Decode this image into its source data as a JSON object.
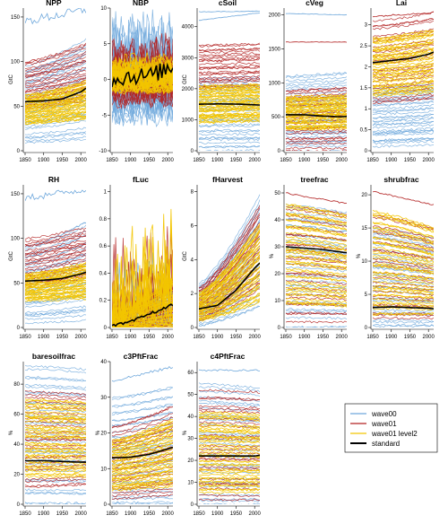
{
  "figure": {
    "background": "#ffffff"
  },
  "colors": {
    "wave00": "#6fa8dc",
    "wave01": "#b22222",
    "wave01_level2": "#f2c500",
    "standard": "#000000"
  },
  "legend": {
    "placement": "bottom-right",
    "items": [
      {
        "key": "wave00",
        "label": "wave00"
      },
      {
        "key": "wave01",
        "label": "wave01"
      },
      {
        "key": "wave01_level2",
        "label": "wave01 level2"
      },
      {
        "key": "standard",
        "label": "standard"
      }
    ]
  },
  "chart_data": [
    {
      "type": "line",
      "title": "NPP",
      "ylabel": "GtC",
      "xlim": [
        1850,
        2014
      ],
      "xticks": [
        1850,
        1900,
        1950,
        2000
      ],
      "ylim": [
        0,
        160
      ],
      "yticks": [
        0,
        50,
        100,
        150
      ],
      "bands": {
        "wave00": [
          [
            8,
            95
          ],
          [
            12,
            125
          ]
        ],
        "wave01": [
          [
            45,
            100
          ],
          [
            55,
            120
          ]
        ],
        "wave01_level2": [
          [
            30,
            62
          ],
          [
            35,
            78
          ]
        ]
      },
      "outliers": [
        {
          "series": "wave00",
          "start": 145,
          "end": 158,
          "noise": 5
        }
      ],
      "standard": [
        [
          1850,
          55
        ],
        [
          1900,
          56
        ],
        [
          1950,
          58
        ],
        [
          2000,
          66
        ],
        [
          2014,
          70
        ]
      ]
    },
    {
      "type": "line",
      "title": "NBP",
      "ylabel": "",
      "xlim": [
        1850,
        2014
      ],
      "xticks": [
        1850,
        1900,
        1950,
        2000
      ],
      "ylim": [
        -10,
        10
      ],
      "yticks": [
        -10,
        -5,
        0,
        5,
        10
      ],
      "bands": {
        "wave00": [
          [
            -5,
            5
          ],
          [
            -5,
            5
          ]
        ],
        "wave01": [
          [
            -3,
            3
          ],
          [
            -3,
            3
          ]
        ],
        "wave01_level2": [
          [
            -1.5,
            2
          ],
          [
            -1.5,
            2
          ]
        ]
      },
      "outliers": [],
      "noisy": true,
      "standard": [
        [
          1850,
          0
        ],
        [
          1900,
          0.5
        ],
        [
          1950,
          0.5
        ],
        [
          2000,
          1.5
        ],
        [
          2014,
          2
        ]
      ]
    },
    {
      "type": "line",
      "title": "cSoil",
      "ylabel": "GtC",
      "xlim": [
        1850,
        2014
      ],
      "xticks": [
        1850,
        1900,
        1950,
        2000
      ],
      "ylim": [
        0,
        4600
      ],
      "yticks": [
        0,
        1000,
        2000,
        3000,
        4000
      ],
      "bands": {
        "wave00": [
          [
            0,
            2400
          ],
          [
            0,
            2450
          ]
        ],
        "wave01": [
          [
            2000,
            3400
          ],
          [
            2050,
            3450
          ]
        ],
        "wave01_level2": [
          [
            900,
            2100
          ],
          [
            950,
            2150
          ]
        ]
      },
      "outliers": [
        {
          "series": "wave00",
          "start": 4200,
          "end": 4450,
          "noise": 10
        },
        {
          "series": "wave00",
          "start": 4480,
          "end": 4500,
          "noise": 10
        }
      ],
      "standard": [
        [
          1850,
          1500
        ],
        [
          1900,
          1510
        ],
        [
          1950,
          1505
        ],
        [
          2000,
          1480
        ],
        [
          2014,
          1475
        ]
      ]
    },
    {
      "type": "line",
      "title": "cVeg",
      "ylabel": "",
      "xlim": [
        1850,
        2014
      ],
      "xticks": [
        1850,
        1900,
        1950,
        2000
      ],
      "ylim": [
        0,
        2100
      ],
      "yticks": [
        0,
        500,
        1000,
        1500,
        2000
      ],
      "bands": {
        "wave00": [
          [
            0,
            1100
          ],
          [
            0,
            1150
          ]
        ],
        "wave01": [
          [
            0,
            900
          ],
          [
            0,
            950
          ]
        ],
        "wave01_level2": [
          [
            300,
            800
          ],
          [
            320,
            820
          ]
        ]
      },
      "outliers": [
        {
          "series": "wave00",
          "start": 2020,
          "end": 2000,
          "noise": 4
        },
        {
          "series": "wave01",
          "start": 1600,
          "end": 1600,
          "noise": 4
        }
      ],
      "standard": [
        [
          1850,
          530
        ],
        [
          1900,
          530
        ],
        [
          1950,
          510
        ],
        [
          2000,
          500
        ],
        [
          2014,
          505
        ]
      ]
    },
    {
      "type": "line",
      "title": "Lai",
      "ylabel": "",
      "xlim": [
        1850,
        2014
      ],
      "xticks": [
        1850,
        1900,
        1950,
        2000
      ],
      "ylim": [
        0,
        3.4
      ],
      "yticks": [
        0,
        0.5,
        1,
        1.5,
        2,
        2.5,
        3
      ],
      "bands": {
        "wave00": [
          [
            0.1,
            1.5
          ],
          [
            0.15,
            1.6
          ]
        ],
        "wave01": [
          [
            1.1,
            3.1
          ],
          [
            1.2,
            3.3
          ]
        ],
        "wave01_level2": [
          [
            1.3,
            2.7
          ],
          [
            1.4,
            2.9
          ]
        ]
      },
      "outliers": [
        {
          "series": "wave01",
          "start": 3.2,
          "end": 3.3,
          "noise": 0.02
        }
      ],
      "standard": [
        [
          1850,
          2.1
        ],
        [
          1900,
          2.15
        ],
        [
          1950,
          2.2
        ],
        [
          2000,
          2.3
        ],
        [
          2014,
          2.35
        ]
      ]
    },
    {
      "type": "line",
      "title": "RH",
      "ylabel": "GtC",
      "xlim": [
        1850,
        2014
      ],
      "xticks": [
        1850,
        1900,
        1950,
        2000
      ],
      "ylim": [
        0,
        160
      ],
      "yticks": [
        0,
        50,
        100,
        150
      ],
      "bands": {
        "wave00": [
          [
            5,
            90
          ],
          [
            8,
            118
          ]
        ],
        "wave01": [
          [
            45,
            100
          ],
          [
            55,
            112
          ]
        ],
        "wave01_level2": [
          [
            30,
            60
          ],
          [
            32,
            72
          ]
        ]
      },
      "outliers": [
        {
          "series": "wave00",
          "start": 145,
          "end": 155,
          "noise": 4
        }
      ],
      "standard": [
        [
          1850,
          52
        ],
        [
          1900,
          53
        ],
        [
          1950,
          55
        ],
        [
          2000,
          60
        ],
        [
          2014,
          62
        ]
      ]
    },
    {
      "type": "line",
      "title": "fLuc",
      "ylabel": "",
      "xlim": [
        1850,
        2014
      ],
      "xticks": [
        1850,
        1900,
        1950,
        2000
      ],
      "ylim": [
        0,
        1.05
      ],
      "yticks": [
        0,
        0.2,
        0.4,
        0.6,
        0.8,
        1
      ],
      "bands": {
        "wave00": [
          [
            0,
            0.15
          ],
          [
            0,
            0.4
          ]
        ],
        "wave01": [
          [
            0,
            0.1
          ],
          [
            0,
            0.5
          ]
        ],
        "wave01_level2": [
          [
            0,
            0.1
          ],
          [
            0,
            0.5
          ]
        ]
      },
      "outliers": [],
      "spiky": true,
      "standard": [
        [
          1850,
          0.01
        ],
        [
          1900,
          0.04
        ],
        [
          1950,
          0.1
        ],
        [
          2000,
          0.15
        ],
        [
          2014,
          0.17
        ]
      ]
    },
    {
      "type": "line",
      "title": "fHarvest",
      "ylabel": "GtC",
      "xlim": [
        1850,
        2014
      ],
      "xticks": [
        1850,
        1900,
        1950,
        2000
      ],
      "ylim": [
        0,
        8.4
      ],
      "yticks": [
        0,
        2,
        4,
        6,
        8
      ],
      "bands": {
        "wave00": [
          [
            0.1,
            2.6
          ],
          [
            1.2,
            7.8
          ]
        ],
        "wave01": [
          [
            0.4,
            2.4
          ],
          [
            2.3,
            7.3
          ]
        ],
        "wave01_level2": [
          [
            0.4,
            2.1
          ],
          [
            1.5,
            6.3
          ]
        ]
      },
      "outliers": [],
      "standard": [
        [
          1850,
          1.1
        ],
        [
          1900,
          1.3
        ],
        [
          1950,
          2.2
        ],
        [
          2000,
          3.5
        ],
        [
          2014,
          3.8
        ]
      ]
    },
    {
      "type": "line",
      "title": "treefrac",
      "ylabel": "%",
      "xlim": [
        1850,
        2014
      ],
      "xticks": [
        1850,
        1900,
        1950,
        2000
      ],
      "ylim": [
        0,
        53
      ],
      "yticks": [
        0,
        10,
        20,
        30,
        40,
        50
      ],
      "bands": {
        "wave00": [
          [
            0,
            46
          ],
          [
            0,
            43
          ]
        ],
        "wave01": [
          [
            2,
            45
          ],
          [
            2,
            42
          ]
        ],
        "wave01_level2": [
          [
            8,
            46
          ],
          [
            7,
            42
          ]
        ]
      },
      "outliers": [
        {
          "series": "wave01",
          "start": 50,
          "end": 46,
          "noise": 0.3
        }
      ],
      "standard": [
        [
          1850,
          30
        ],
        [
          1900,
          29.5
        ],
        [
          1950,
          29
        ],
        [
          2000,
          28
        ],
        [
          2014,
          27.8
        ]
      ]
    },
    {
      "type": "line",
      "title": "shrubfrac",
      "ylabel": "%",
      "xlim": [
        1850,
        2014
      ],
      "xticks": [
        1850,
        1900,
        1950,
        2000
      ],
      "ylim": [
        0,
        21.5
      ],
      "yticks": [
        0,
        5,
        10,
        15,
        20
      ],
      "bands": {
        "wave00": [
          [
            0,
            15
          ],
          [
            0,
            13.5
          ]
        ],
        "wave01": [
          [
            1,
            17
          ],
          [
            1,
            15
          ]
        ],
        "wave01_level2": [
          [
            2,
            17.5
          ],
          [
            2,
            15
          ]
        ]
      },
      "outliers": [
        {
          "series": "wave01",
          "start": 20.5,
          "end": 18.5,
          "noise": 0.1
        }
      ],
      "standard": [
        [
          1850,
          3
        ],
        [
          1900,
          3.1
        ],
        [
          1950,
          3
        ],
        [
          2000,
          2.9
        ],
        [
          2014,
          2.8
        ]
      ]
    },
    {
      "type": "line",
      "title": "baresoilfrac",
      "ylabel": "%",
      "xlim": [
        1850,
        2014
      ],
      "xticks": [
        1850,
        1900,
        1950,
        2000
      ],
      "ylim": [
        0,
        95
      ],
      "yticks": [
        0,
        20,
        40,
        60,
        80
      ],
      "bands": {
        "wave00": [
          [
            0,
            92
          ],
          [
            0,
            90
          ]
        ],
        "wave01": [
          [
            10,
            75
          ],
          [
            12,
            73
          ]
        ],
        "wave01_level2": [
          [
            18,
            70
          ],
          [
            18,
            68
          ]
        ]
      },
      "outliers": [],
      "standard": [
        [
          1850,
          29
        ],
        [
          1900,
          29
        ],
        [
          1950,
          28.5
        ],
        [
          2000,
          28
        ],
        [
          2014,
          28
        ]
      ]
    },
    {
      "type": "line",
      "title": "c3PftFrac",
      "ylabel": "%",
      "xlim": [
        1850,
        2014
      ],
      "xticks": [
        1850,
        1900,
        1950,
        2000
      ],
      "ylim": [
        0,
        40
      ],
      "yticks": [
        0,
        10,
        20,
        30,
        40
      ],
      "bands": {
        "wave00": [
          [
            0,
            30
          ],
          [
            0,
            33
          ]
        ],
        "wave01": [
          [
            1,
            22
          ],
          [
            2,
            28
          ]
        ],
        "wave01_level2": [
          [
            4,
            18
          ],
          [
            5,
            24
          ]
        ]
      },
      "outliers": [
        {
          "series": "wave00",
          "start": 34.5,
          "end": 38.5,
          "noise": 0.4
        }
      ],
      "standard": [
        [
          1850,
          13
        ],
        [
          1900,
          13.2
        ],
        [
          1950,
          14
        ],
        [
          2000,
          15.5
        ],
        [
          2014,
          16
        ]
      ]
    },
    {
      "type": "line",
      "title": "c4PftFrac",
      "ylabel": "%",
      "xlim": [
        1850,
        2014
      ],
      "xticks": [
        1850,
        1900,
        1950,
        2000
      ],
      "ylim": [
        0,
        65
      ],
      "yticks": [
        0,
        10,
        20,
        30,
        40,
        50,
        60
      ],
      "bands": {
        "wave00": [
          [
            0,
            55
          ],
          [
            0,
            53
          ]
        ],
        "wave01": [
          [
            2,
            52
          ],
          [
            2,
            51
          ]
        ],
        "wave01_level2": [
          [
            5,
            42
          ],
          [
            5,
            41
          ]
        ]
      },
      "outliers": [
        {
          "series": "wave00",
          "start": 61,
          "end": 61,
          "noise": 0.4
        }
      ],
      "standard": [
        [
          1850,
          22
        ],
        [
          1900,
          22
        ],
        [
          1950,
          22
        ],
        [
          2000,
          22
        ],
        [
          2014,
          22.3
        ]
      ]
    }
  ]
}
